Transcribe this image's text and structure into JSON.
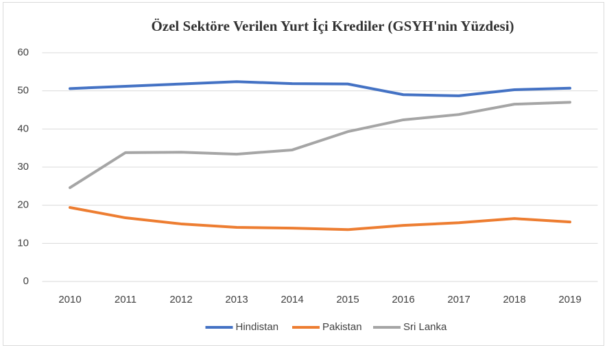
{
  "chart_data": {
    "type": "line",
    "title": "Özel Sektöre Verilen Yurt İçi Krediler (GSYH'nin Yüzdesi)",
    "categories": [
      "2010",
      "2011",
      "2012",
      "2013",
      "2014",
      "2015",
      "2016",
      "2017",
      "2018",
      "2019"
    ],
    "series": [
      {
        "name": "Hindistan",
        "color": "#4472c4",
        "values": [
          50.6,
          51.2,
          51.8,
          52.4,
          51.9,
          51.8,
          49.0,
          48.7,
          50.3,
          50.7
        ]
      },
      {
        "name": "Pakistan",
        "color": "#ed7d31",
        "values": [
          19.4,
          16.7,
          15.1,
          14.2,
          14.0,
          13.6,
          14.7,
          15.4,
          16.5,
          15.6
        ]
      },
      {
        "name": "Sri Lanka",
        "color": "#a5a5a5",
        "values": [
          24.6,
          33.8,
          33.9,
          33.4,
          34.5,
          39.3,
          42.4,
          43.8,
          46.5,
          47.0
        ]
      }
    ],
    "ylim": [
      0,
      60
    ],
    "yticks": [
      0,
      10,
      20,
      30,
      40,
      50,
      60
    ],
    "grid": true,
    "legend": "bottom"
  }
}
